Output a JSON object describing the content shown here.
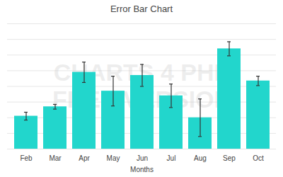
{
  "chart_data": {
    "type": "bar",
    "title": "Error Bar Chart",
    "x_label": "Months",
    "categories": [
      "Feb",
      "Mar",
      "Apr",
      "May",
      "Jun",
      "Jul",
      "Aug",
      "Sep",
      "Oct"
    ],
    "values": [
      4.2,
      5.4,
      9.8,
      7.4,
      9.4,
      6.8,
      4.0,
      12.8,
      8.7
    ],
    "errors": [
      0.5,
      0.3,
      1.3,
      1.9,
      1.4,
      1.5,
      2.4,
      0.9,
      0.6
    ],
    "color": "#22d6cc",
    "ylim": [
      0,
      16
    ],
    "yticks": [
      0,
      2,
      4,
      6,
      8,
      10,
      12,
      14,
      16
    ],
    "grid": true,
    "tick_labels": "x",
    "annotations": [
      "CHARTS 4 PHP",
      "FREE VERSION"
    ]
  }
}
